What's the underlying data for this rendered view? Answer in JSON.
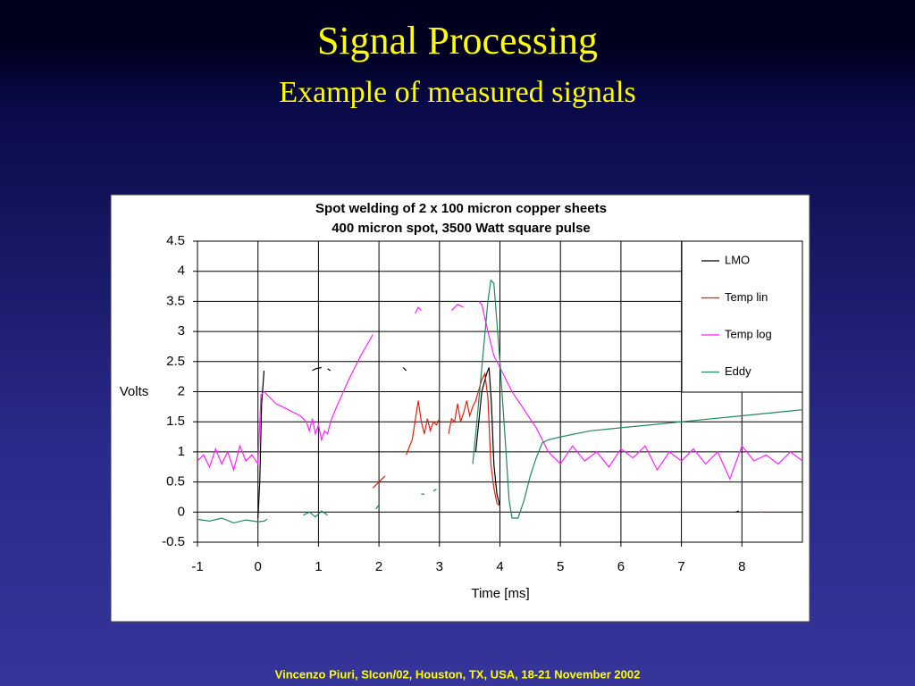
{
  "slide": {
    "title": "Signal Processing",
    "subtitle": "Example of measured signals",
    "footer": "Vincenzo Piuri, SIcon/02, Houston, TX, USA, 18-21 November 2002"
  },
  "chart_data": {
    "type": "line",
    "title": "Spot welding of 2 x 100 micron copper sheets",
    "subtitle": "400 micron spot, 3500 Watt square pulse",
    "x_label": "Time [ms]",
    "y_label": "Volts",
    "xlim": [
      -1,
      9
    ],
    "xticks": [
      -1,
      0,
      1,
      2,
      3,
      4,
      5,
      6,
      7,
      8
    ],
    "ylim": [
      -0.5,
      4.5
    ],
    "yticks": [
      -0.5,
      0,
      0.5,
      1,
      1.5,
      2,
      2.5,
      3,
      3.5,
      4,
      4.5
    ],
    "grid": true,
    "legend": "upper-right",
    "series": [
      {
        "name": "LMO",
        "color": "#000000",
        "x": [
          0.0,
          0.03,
          0.06,
          0.1,
          0.15,
          0.9,
          0.95,
          1.05,
          1.1,
          1.15,
          1.2,
          1.25,
          2.4,
          2.45,
          2.5,
          3.6,
          3.7,
          3.78,
          3.82,
          3.86,
          3.9,
          3.95,
          4.0,
          4.05,
          7.9,
          7.95
        ],
        "values": [
          -0.1,
          0.5,
          1.8,
          2.35,
          null,
          2.35,
          2.38,
          2.4,
          null,
          2.38,
          2.35,
          null,
          2.4,
          2.35,
          null,
          1.0,
          2.0,
          2.3,
          2.4,
          1.8,
          0.8,
          0.3,
          0.1,
          null,
          0.0,
          0.02
        ]
      },
      {
        "name": "Temp lin",
        "color": "#dd2211",
        "x": [
          1.9,
          2.0,
          2.1,
          2.2,
          2.45,
          2.55,
          2.65,
          2.7,
          2.75,
          2.8,
          2.85,
          2.9,
          2.95,
          3.0,
          3.05,
          3.15,
          3.2,
          3.25,
          3.3,
          3.35,
          3.4,
          3.45,
          3.5,
          3.55,
          3.6,
          3.7,
          3.75,
          3.8,
          3.85,
          3.9,
          3.95,
          4.0,
          4.1,
          8.3,
          8.35
        ],
        "values": [
          0.4,
          0.5,
          0.6,
          null,
          0.95,
          1.2,
          1.85,
          1.5,
          1.3,
          1.55,
          1.35,
          1.5,
          1.45,
          1.55,
          null,
          1.3,
          1.55,
          1.5,
          1.8,
          1.5,
          1.65,
          1.85,
          1.6,
          1.75,
          1.85,
          2.2,
          2.3,
          1.9,
          0.8,
          0.4,
          0.15,
          0.1,
          null,
          0.0,
          0.0
        ]
      },
      {
        "name": "Temp log",
        "color": "#ff22ff",
        "x": [
          -1,
          -0.9,
          -0.8,
          -0.7,
          -0.6,
          -0.5,
          -0.4,
          -0.3,
          -0.2,
          -0.1,
          0.0,
          0.05,
          0.1,
          0.2,
          0.3,
          0.5,
          0.7,
          0.8,
          0.85,
          0.9,
          0.95,
          1.0,
          1.05,
          1.1,
          1.15,
          1.2,
          1.3,
          1.5,
          1.7,
          1.9,
          2.0,
          2.6,
          2.65,
          2.7,
          2.8,
          3.2,
          3.3,
          3.4,
          3.5,
          3.65,
          3.7,
          3.8,
          3.9,
          4.0,
          4.2,
          4.4,
          4.6,
          4.7,
          4.8,
          5.0,
          5.2,
          5.4,
          5.6,
          5.8,
          6.0,
          6.2,
          6.4,
          6.6,
          6.8,
          7.0,
          7.2,
          7.4,
          7.6,
          7.8,
          8.0,
          8.2,
          8.4,
          8.6,
          8.8,
          9.0
        ],
        "values": [
          0.85,
          0.95,
          0.75,
          1.05,
          0.8,
          1.0,
          0.7,
          1.1,
          0.85,
          0.95,
          0.8,
          1.95,
          2.0,
          1.9,
          1.8,
          1.7,
          1.6,
          1.5,
          1.35,
          1.55,
          1.3,
          1.45,
          1.2,
          1.35,
          1.3,
          1.5,
          1.75,
          2.2,
          2.6,
          2.95,
          null,
          3.3,
          3.4,
          3.35,
          null,
          3.35,
          3.45,
          3.4,
          null,
          3.5,
          3.45,
          3.0,
          2.6,
          2.4,
          2.0,
          1.7,
          1.4,
          1.2,
          1.0,
          0.8,
          1.1,
          0.85,
          1.0,
          0.75,
          1.05,
          0.9,
          1.1,
          0.7,
          1.0,
          0.85,
          1.05,
          0.8,
          1.0,
          0.55,
          1.1,
          0.85,
          0.95,
          0.8,
          1.0,
          0.85
        ]
      },
      {
        "name": "Eddy",
        "color": "#22885a",
        "x": [
          -1,
          -0.8,
          -0.6,
          -0.4,
          -0.2,
          0.0,
          0.1,
          0.15,
          0.2,
          0.75,
          0.85,
          0.95,
          1.05,
          1.15,
          1.2,
          1.95,
          2.0,
          2.05,
          2.7,
          2.75,
          2.8,
          2.9,
          2.95,
          3.0,
          3.55,
          3.6,
          3.7,
          3.8,
          3.85,
          3.9,
          4.0,
          4.1,
          4.15,
          4.2,
          4.3,
          4.4,
          4.5,
          4.6,
          4.7,
          4.8,
          5.0,
          5.5,
          6.0,
          6.5,
          7.0,
          7.5,
          8.0,
          8.5,
          9.0
        ],
        "values": [
          -0.12,
          -0.15,
          -0.1,
          -0.18,
          -0.13,
          -0.16,
          -0.15,
          -0.12,
          null,
          -0.05,
          0.0,
          -0.08,
          0.02,
          -0.05,
          null,
          0.05,
          0.12,
          null,
          0.3,
          0.3,
          null,
          0.35,
          0.38,
          null,
          0.8,
          1.3,
          2.4,
          3.5,
          3.85,
          3.8,
          2.5,
          1.0,
          0.2,
          -0.1,
          -0.1,
          0.2,
          0.6,
          0.9,
          1.15,
          1.2,
          1.25,
          1.35,
          1.4,
          1.45,
          1.5,
          1.55,
          1.6,
          1.65,
          1.7
        ]
      }
    ]
  }
}
